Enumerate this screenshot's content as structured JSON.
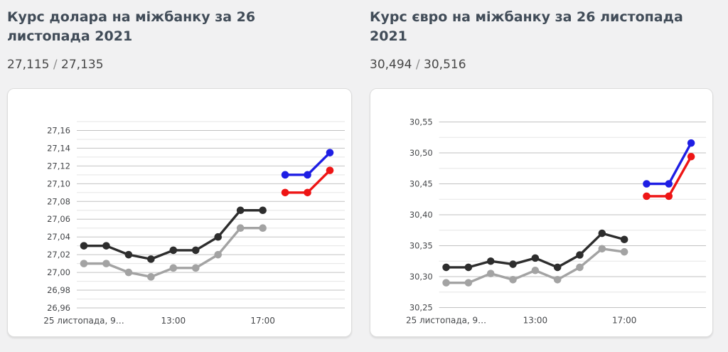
{
  "colors": {
    "page_bg": "#f1f1f2",
    "card_bg": "#ffffff",
    "card_border": "#dcdcdc",
    "title_text": "#414c58",
    "rates_text": "#474747",
    "rates_separator": "#8f8f8f",
    "axis_label": "#45474a",
    "grid_major": "#c2c2c2",
    "grid_minor": "#e5e5e5",
    "series_prev_upper": "#2d2d2d",
    "series_prev_lower": "#a3a3a3",
    "series_today_upper": "#1e1ee4",
    "series_today_lower": "#ee1515"
  },
  "panels": [
    {
      "title": "Курс долара на міжбанку за 26 листопада 2021",
      "rate_bid": "27,115",
      "rate_separator": "/",
      "rate_ask": "27,135"
    },
    {
      "title": "Курс євро на міжбанку за 26 листопада 2021",
      "rate_bid": "30,494",
      "rate_separator": "/",
      "rate_ask": "30,516"
    }
  ],
  "chart_data": [
    {
      "type": "line",
      "title": "Курс долара на міжбанку за 26 листопада 2021",
      "x_slot_count": 12,
      "xticks": [
        {
          "slot": 0,
          "label": "25 листопада, 9…"
        },
        {
          "slot": 4,
          "label": "13:00"
        },
        {
          "slot": 8,
          "label": "17:00"
        }
      ],
      "y_axis": {
        "grid_min": 26.96,
        "grid_max": 27.17,
        "grid_step": 0.01,
        "labels": [
          {
            "v": 26.96,
            "t": "26,96"
          },
          {
            "v": 26.98,
            "t": "26,98"
          },
          {
            "v": 27.0,
            "t": "27,00"
          },
          {
            "v": 27.02,
            "t": "27,02"
          },
          {
            "v": 27.04,
            "t": "27,04"
          },
          {
            "v": 27.06,
            "t": "27,06"
          },
          {
            "v": 27.08,
            "t": "27,08"
          },
          {
            "v": 27.1,
            "t": "27,10"
          },
          {
            "v": 27.12,
            "t": "27,12"
          },
          {
            "v": 27.14,
            "t": "27,14"
          },
          {
            "v": 27.16,
            "t": "27,16"
          }
        ]
      },
      "series": [
        {
          "id": "prev-day-lower",
          "color": "#a3a3a3",
          "start_slot": 0,
          "values": [
            27.01,
            27.01,
            27.0,
            26.995,
            27.005,
            27.005,
            27.02,
            27.05,
            27.05
          ]
        },
        {
          "id": "prev-day-upper",
          "color": "#2d2d2d",
          "start_slot": 0,
          "values": [
            27.03,
            27.03,
            27.02,
            27.015,
            27.025,
            27.025,
            27.04,
            27.07,
            27.07
          ]
        },
        {
          "id": "today-lower",
          "color": "#ee1515",
          "start_slot": 9,
          "values": [
            27.09,
            27.09,
            27.115
          ]
        },
        {
          "id": "today-upper",
          "color": "#1e1ee4",
          "start_slot": 9,
          "values": [
            27.11,
            27.11,
            27.135
          ]
        }
      ]
    },
    {
      "type": "line",
      "title": "Курс євро на міжбанку за 26 листопада 2021",
      "x_slot_count": 12,
      "xticks": [
        {
          "slot": 0,
          "label": "25 листопада, 9…"
        },
        {
          "slot": 4,
          "label": "13:00"
        },
        {
          "slot": 8,
          "label": "17:00"
        }
      ],
      "y_axis": {
        "grid_min": 30.25,
        "grid_max": 30.55,
        "grid_step": 0.025,
        "labels": [
          {
            "v": 30.25,
            "t": "30,25"
          },
          {
            "v": 30.3,
            "t": "30,30"
          },
          {
            "v": 30.35,
            "t": "30,35"
          },
          {
            "v": 30.4,
            "t": "30,40"
          },
          {
            "v": 30.45,
            "t": "30,45"
          },
          {
            "v": 30.5,
            "t": "30,50"
          },
          {
            "v": 30.55,
            "t": "30,55"
          }
        ]
      },
      "series": [
        {
          "id": "prev-day-lower",
          "color": "#a3a3a3",
          "start_slot": 0,
          "values": [
            30.29,
            30.29,
            30.305,
            30.295,
            30.31,
            30.295,
            30.315,
            30.345,
            30.34
          ]
        },
        {
          "id": "prev-day-upper",
          "color": "#2d2d2d",
          "start_slot": 0,
          "values": [
            30.315,
            30.315,
            30.325,
            30.32,
            30.33,
            30.315,
            30.335,
            30.37,
            30.36
          ]
        },
        {
          "id": "today-lower",
          "color": "#ee1515",
          "start_slot": 9,
          "values": [
            30.43,
            30.43,
            30.494
          ]
        },
        {
          "id": "today-upper",
          "color": "#1e1ee4",
          "start_slot": 9,
          "values": [
            30.45,
            30.45,
            30.516
          ]
        }
      ]
    }
  ]
}
